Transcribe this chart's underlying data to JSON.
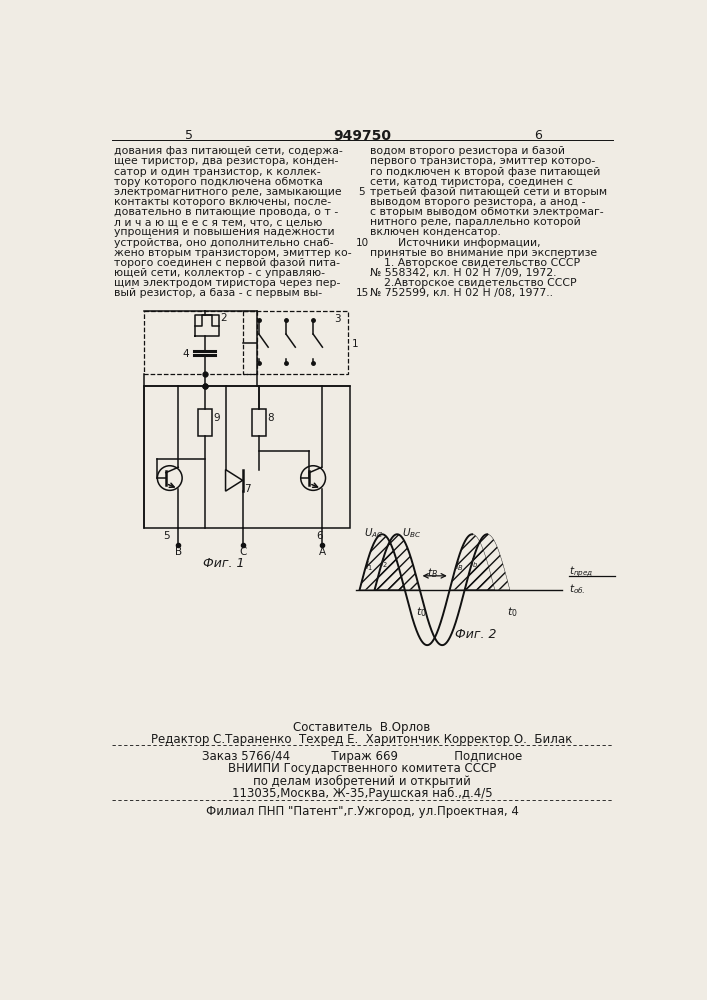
{
  "page_number_left": "5",
  "page_number_center": "949750",
  "page_number_right": "6",
  "text_left": [
    "дования фаз питающей сети, содержа-",
    "щее тиристор, два резистора, конден-",
    "сатор и один транзистор, к коллек-",
    "тору которого подключена обмотка",
    "электромагнитного реле, замыкающие",
    "контакты которого включены, после-",
    "довательно в питающие провода, о т -",
    "л и ч а ю щ е е с я тем, что, с целью",
    "упрощения и повышения надежности",
    "устройства, оно дополнительно снаб-",
    "жено вторым транзистором, эмиттер ко-",
    "торого соединен с первой фазой пита-",
    "ющей сети, коллектор - с управляю-",
    "щим электродом тиристора через пер-",
    "вый резистор, а база - с первым вы-"
  ],
  "text_right": [
    "водом второго резистора и базой",
    "первого транзистора, эмиттер которо-",
    "го подключен к второй фазе питающей",
    "сети, катод тиристора, соединен с",
    "третьей фазой питающей сети и вторым",
    "выводом второго резистора, а анод -",
    "с вторым выводом обмотки электромаг-",
    "нитного реле, параллельно которой",
    "включен конденсатор.",
    "        Источники информации,",
    "принятые во внимание при экспертизе",
    "    1. Авторское свидетельство СССР",
    "№ 558342, кл. Н 02 Н 7/09, 1972.",
    "    2.Авторское свидетельство СССР",
    "№ 752599, кл. Н 02 Н /08, 1977.."
  ],
  "composer_line": "Составитель  В.Орлов",
  "editor_line": "Редактор С.Тараненко  Техред Е.  Харитончик Корректор О.  Билак",
  "order_line": "Заказ 5766/44           Тираж 669               Подписное",
  "vniip_line1": "ВНИИПИ Государственного комитета СССР",
  "vniip_line2": "по делам изобретений и открытий",
  "vniip_line3": "113035,Москва, Ж-35,Раушская наб.,д.4/5",
  "filial_line": "Филиал ПНП \"Патент\",г.Ужгород, ул.Проектная, 4",
  "fig1_label": "Фиг. 1",
  "fig2_label": "Фиг. 2",
  "bg_color": "#f0ece4",
  "text_color": "#1a1a1a",
  "line_color": "#111111"
}
